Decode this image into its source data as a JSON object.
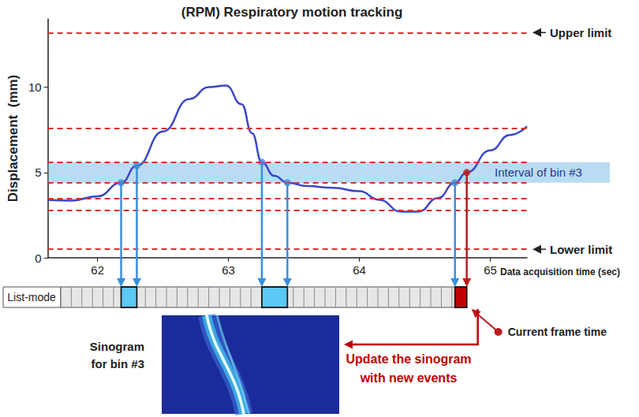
{
  "chart_data": {
    "type": "line",
    "title": "(RPM) Respiratory motion tracking",
    "x_label": "Data acquisition time (sec)",
    "y_label": "Displacement  (mm)",
    "x": [
      61.62,
      61.8,
      62.0,
      62.18,
      62.3,
      62.5,
      62.7,
      62.85,
      62.98,
      63.1,
      63.18,
      63.255,
      63.35,
      63.45,
      63.6,
      63.8,
      64.0,
      64.15,
      64.32,
      64.45,
      64.6,
      64.73,
      64.82,
      65.0,
      65.15,
      65.28
    ],
    "values": [
      3.4,
      3.35,
      3.6,
      4.4,
      5.4,
      7.4,
      9.3,
      10.0,
      10.1,
      9.0,
      7.3,
      5.6,
      4.8,
      4.4,
      4.2,
      4.1,
      3.9,
      3.4,
      2.7,
      2.7,
      3.5,
      4.4,
      5.0,
      6.3,
      7.2,
      7.7
    ],
    "color": "#3c46c8",
    "xlim": [
      61.62,
      65.28
    ],
    "xticks": [
      62,
      63,
      64,
      65
    ],
    "ylim": [
      0,
      14
    ],
    "yticks": [
      0,
      5,
      10
    ],
    "grid": false,
    "upper_limit": {
      "value": 13.2,
      "label": "Upper limit"
    },
    "lower_limit": {
      "value": 0.5,
      "label": "Lower limit"
    },
    "levels": [
      2.8,
      3.5,
      7.6
    ],
    "bin_interval": {
      "range": [
        4.4,
        5.6
      ],
      "label": "Interval of bin #3"
    },
    "bin_crossings": {
      "x": [
        62.18,
        62.3,
        63.255,
        63.45,
        64.73
      ],
      "y": [
        4.4,
        5.4,
        5.6,
        4.4,
        4.4
      ]
    },
    "bin_frames": [
      [
        62.18,
        62.3
      ],
      [
        63.255,
        63.45
      ]
    ],
    "current_frame": {
      "start": 64.73,
      "x": 64.82,
      "y": 5.0,
      "label": "Current frame time"
    },
    "list_mode_label": "List-mode",
    "sinogram_label": "Sinogram\nfor bin #3",
    "update_label": "Update the sinogram\nwith new events"
  }
}
